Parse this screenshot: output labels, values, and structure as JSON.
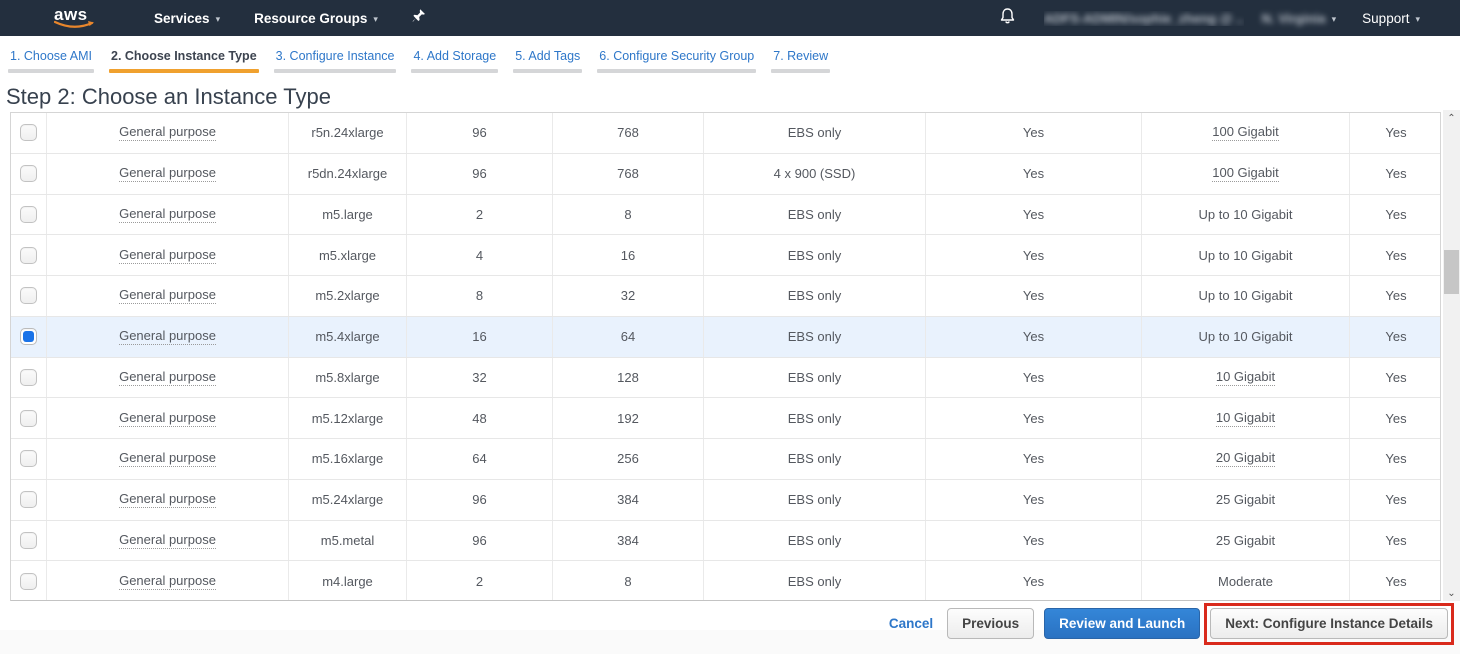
{
  "colors": {
    "nav_bg": "#232f3e",
    "accent_orange": "#f0a12f",
    "link_blue": "#2e77c9",
    "selected_row_bg": "#e9f2fd",
    "selected_checkbox_blue": "#1a73e8",
    "primary_button_blue": "#2a72c2",
    "annotation_red": "#d92a1c"
  },
  "nav": {
    "logo_text": "aws",
    "services_label": "Services",
    "resource_groups_label": "Resource Groups",
    "account_redacted_text": "ADFS-ADMIN/sophie_zheng @ ..",
    "region_redacted_text": "N. Virginia",
    "support_label": "Support",
    "caret_glyph": "▼"
  },
  "wizard_tabs": [
    {
      "label": "1. Choose AMI",
      "active": false
    },
    {
      "label": "2. Choose Instance Type",
      "active": true
    },
    {
      "label": "3. Configure Instance",
      "active": false
    },
    {
      "label": "4. Add Storage",
      "active": false
    },
    {
      "label": "5. Add Tags",
      "active": false
    },
    {
      "label": "6. Configure Security Group",
      "active": false
    },
    {
      "label": "7. Review",
      "active": false
    }
  ],
  "page": {
    "title": "Step 2: Choose an Instance Type"
  },
  "table": {
    "rows": [
      {
        "family": "General purpose",
        "type": "r5n.24xlarge",
        "vcpus": "96",
        "memory": "768",
        "storage": "EBS only",
        "ebs_optimized": "Yes",
        "network": "100 Gigabit",
        "ipv6": "Yes",
        "selected": false,
        "network_tooltip": true
      },
      {
        "family": "General purpose",
        "type": "r5dn.24xlarge",
        "vcpus": "96",
        "memory": "768",
        "storage": "4 x 900 (SSD)",
        "ebs_optimized": "Yes",
        "network": "100 Gigabit",
        "ipv6": "Yes",
        "selected": false,
        "network_tooltip": true
      },
      {
        "family": "General purpose",
        "type": "m5.large",
        "vcpus": "2",
        "memory": "8",
        "storage": "EBS only",
        "ebs_optimized": "Yes",
        "network": "Up to 10 Gigabit",
        "ipv6": "Yes",
        "selected": false,
        "network_tooltip": false
      },
      {
        "family": "General purpose",
        "type": "m5.xlarge",
        "vcpus": "4",
        "memory": "16",
        "storage": "EBS only",
        "ebs_optimized": "Yes",
        "network": "Up to 10 Gigabit",
        "ipv6": "Yes",
        "selected": false,
        "network_tooltip": false
      },
      {
        "family": "General purpose",
        "type": "m5.2xlarge",
        "vcpus": "8",
        "memory": "32",
        "storage": "EBS only",
        "ebs_optimized": "Yes",
        "network": "Up to 10 Gigabit",
        "ipv6": "Yes",
        "selected": false,
        "network_tooltip": false
      },
      {
        "family": "General purpose",
        "type": "m5.4xlarge",
        "vcpus": "16",
        "memory": "64",
        "storage": "EBS only",
        "ebs_optimized": "Yes",
        "network": "Up to 10 Gigabit",
        "ipv6": "Yes",
        "selected": true,
        "network_tooltip": false
      },
      {
        "family": "General purpose",
        "type": "m5.8xlarge",
        "vcpus": "32",
        "memory": "128",
        "storage": "EBS only",
        "ebs_optimized": "Yes",
        "network": "10 Gigabit",
        "ipv6": "Yes",
        "selected": false,
        "network_tooltip": true
      },
      {
        "family": "General purpose",
        "type": "m5.12xlarge",
        "vcpus": "48",
        "memory": "192",
        "storage": "EBS only",
        "ebs_optimized": "Yes",
        "network": "10 Gigabit",
        "ipv6": "Yes",
        "selected": false,
        "network_tooltip": true
      },
      {
        "family": "General purpose",
        "type": "m5.16xlarge",
        "vcpus": "64",
        "memory": "256",
        "storage": "EBS only",
        "ebs_optimized": "Yes",
        "network": "20 Gigabit",
        "ipv6": "Yes",
        "selected": false,
        "network_tooltip": true
      },
      {
        "family": "General purpose",
        "type": "m5.24xlarge",
        "vcpus": "96",
        "memory": "384",
        "storage": "EBS only",
        "ebs_optimized": "Yes",
        "network": "25 Gigabit",
        "ipv6": "Yes",
        "selected": false,
        "network_tooltip": false
      },
      {
        "family": "General purpose",
        "type": "m5.metal",
        "vcpus": "96",
        "memory": "384",
        "storage": "EBS only",
        "ebs_optimized": "Yes",
        "network": "25 Gigabit",
        "ipv6": "Yes",
        "selected": false,
        "network_tooltip": false
      },
      {
        "family": "General purpose",
        "type": "m4.large",
        "vcpus": "2",
        "memory": "8",
        "storage": "EBS only",
        "ebs_optimized": "Yes",
        "network": "Moderate",
        "ipv6": "Yes",
        "selected": false,
        "network_tooltip": false
      }
    ]
  },
  "footer": {
    "cancel_label": "Cancel",
    "previous_label": "Previous",
    "review_launch_label": "Review and Launch",
    "next_label": "Next: Configure Instance Details"
  },
  "scrollbar": {
    "up_glyph": "⌃",
    "down_glyph": "⌄"
  }
}
